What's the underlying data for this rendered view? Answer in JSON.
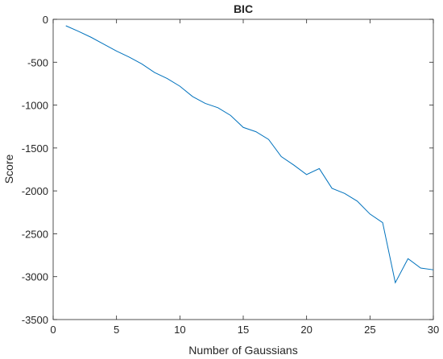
{
  "chart_data": {
    "type": "line",
    "title": "BIC",
    "x_label": "Number of Gaussians",
    "y_label": "Score",
    "x": [
      1,
      2,
      3,
      4,
      5,
      6,
      7,
      8,
      9,
      10,
      11,
      12,
      13,
      14,
      15,
      16,
      17,
      18,
      19,
      20,
      21,
      22,
      23,
      24,
      25,
      26,
      27,
      28,
      29,
      30
    ],
    "series": [
      {
        "name": "BIC",
        "color": "#0072bd",
        "values": [
          -75,
          -140,
          -210,
          -290,
          -370,
          -440,
          -520,
          -620,
          -690,
          -780,
          -900,
          -980,
          -1030,
          -1120,
          -1260,
          -1310,
          -1400,
          -1600,
          -1700,
          -1810,
          -1740,
          -1970,
          -2030,
          -2120,
          -2270,
          -2370,
          -3070,
          -2790,
          -2900,
          -2920
        ]
      }
    ],
    "xlim": [
      0,
      30
    ],
    "xticks": [
      0,
      5,
      10,
      15,
      20,
      25,
      30
    ],
    "ylim": [
      -3500,
      0
    ],
    "yticks": [
      -3500,
      -3000,
      -2500,
      -2000,
      -1500,
      -1000,
      -500,
      0
    ]
  }
}
